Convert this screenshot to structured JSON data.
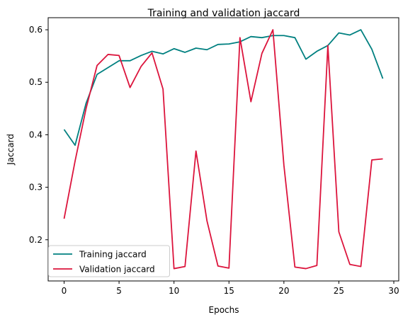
{
  "chart_data": {
    "type": "line",
    "title": "Training and validation jaccard",
    "xlabel": "Epochs",
    "ylabel": "Jaccard",
    "xlim": [
      -1.45,
      30.45
    ],
    "ylim": [
      0.1215,
      0.623
    ],
    "xticks": [
      0,
      5,
      10,
      15,
      20,
      25,
      30
    ],
    "yticks": [
      0.2,
      0.3,
      0.4,
      0.5,
      0.6
    ],
    "grid": false,
    "legend_position": "lower-left",
    "x": [
      0,
      1,
      2,
      3,
      4,
      5,
      6,
      7,
      8,
      9,
      10,
      11,
      12,
      13,
      14,
      15,
      16,
      17,
      18,
      19,
      20,
      21,
      22,
      23,
      24,
      25,
      26,
      27,
      28,
      29
    ],
    "series": [
      {
        "name": "Training jaccard",
        "color": "#008080",
        "values": [
          0.41,
          0.38,
          0.46,
          0.515,
          0.528,
          0.541,
          0.541,
          0.551,
          0.559,
          0.554,
          0.564,
          0.557,
          0.565,
          0.562,
          0.572,
          0.573,
          0.577,
          0.587,
          0.585,
          0.589,
          0.589,
          0.585,
          0.544,
          0.559,
          0.57,
          0.594,
          0.59,
          0.6,
          0.563,
          0.507
        ]
      },
      {
        "name": "Validation jaccard",
        "color": "#dc143c",
        "values": [
          0.24,
          0.35,
          0.45,
          0.532,
          0.553,
          0.551,
          0.49,
          0.53,
          0.556,
          0.487,
          0.145,
          0.149,
          0.369,
          0.236,
          0.15,
          0.146,
          0.585,
          0.463,
          0.555,
          0.6,
          0.342,
          0.148,
          0.145,
          0.151,
          0.57,
          0.215,
          0.153,
          0.149,
          0.352,
          0.354
        ]
      }
    ]
  }
}
